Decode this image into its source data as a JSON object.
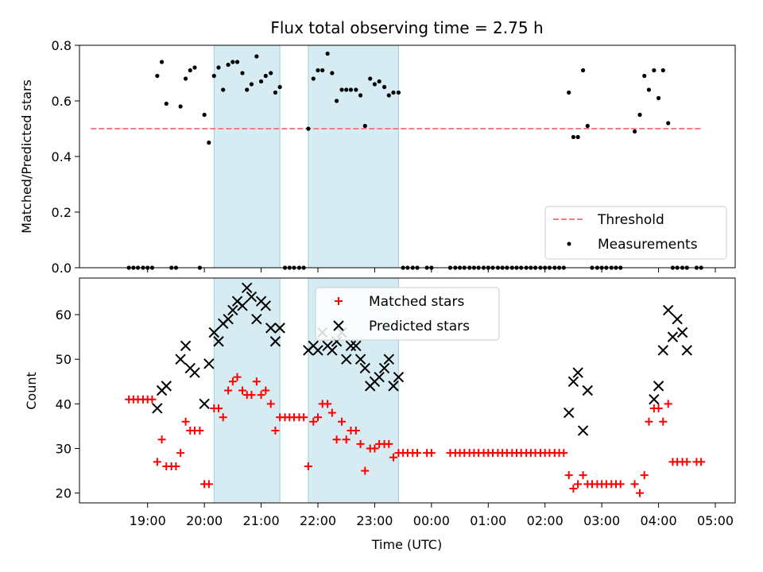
{
  "chart_data": [
    {
      "type": "scatter",
      "title": "Flux total observing time = 2.75 h",
      "xlabel": "",
      "ylabel": "Matched/Predicted stars",
      "ylim": [
        0,
        0.8
      ],
      "xlim_hours": [
        17.8,
        29.35
      ],
      "yticks": [
        0.0,
        0.2,
        0.4,
        0.6,
        0.8
      ],
      "ytick_labels": [
        "0.0",
        "0.2",
        "0.4",
        "0.6",
        "0.8"
      ],
      "legend_position": "lower-right",
      "legend": {
        "threshold": "Threshold",
        "measurements": "Measurements"
      },
      "threshold": {
        "value": 0.5,
        "x_start": 18.0,
        "x_end": 28.75,
        "color": "#f08080"
      },
      "shaded_spans_hours": [
        [
          20.17,
          21.33
        ],
        [
          21.83,
          23.42
        ]
      ],
      "series": [
        {
          "name": "Measurements",
          "color": "#000000",
          "x": [
            18.67,
            18.75,
            18.83,
            18.92,
            19.0,
            19.08,
            19.17,
            19.25,
            19.33,
            19.42,
            19.5,
            19.58,
            19.67,
            19.75,
            19.83,
            19.92,
            20.0,
            20.08,
            20.17,
            20.25,
            20.33,
            20.42,
            20.5,
            20.58,
            20.67,
            20.75,
            20.83,
            20.92,
            21.0,
            21.08,
            21.17,
            21.25,
            21.33,
            21.42,
            21.5,
            21.58,
            21.67,
            21.75,
            21.83,
            21.92,
            22.0,
            22.08,
            22.17,
            22.25,
            22.33,
            22.42,
            22.5,
            22.58,
            22.67,
            22.75,
            22.83,
            22.92,
            23.0,
            23.08,
            23.17,
            23.25,
            23.33,
            23.42,
            23.5,
            23.58,
            23.67,
            23.75,
            23.92,
            24.0,
            24.33,
            24.42,
            24.5,
            24.58,
            24.67,
            24.75,
            24.83,
            24.92,
            25.0,
            25.08,
            25.17,
            25.25,
            25.33,
            25.42,
            25.5,
            25.58,
            25.67,
            25.75,
            25.83,
            25.92,
            26.0,
            26.08,
            26.17,
            26.25,
            26.33,
            26.42,
            26.5,
            26.58,
            26.67,
            26.75,
            26.83,
            26.92,
            27.0,
            27.08,
            27.17,
            27.25,
            27.33,
            27.58,
            27.67,
            27.75,
            27.83,
            27.92,
            28.0,
            28.08,
            28.17,
            28.25,
            28.33,
            28.42,
            28.5,
            28.67,
            28.75
          ],
          "y": [
            0.0,
            0.0,
            0.0,
            0.0,
            0.0,
            0.0,
            0.69,
            0.74,
            0.59,
            0.0,
            0.0,
            0.58,
            0.68,
            0.71,
            0.72,
            0.0,
            0.55,
            0.45,
            0.69,
            0.72,
            0.64,
            0.73,
            0.74,
            0.74,
            0.7,
            0.64,
            0.66,
            0.76,
            0.67,
            0.69,
            0.7,
            0.63,
            0.65,
            0.0,
            0.0,
            0.0,
            0.0,
            0.0,
            0.5,
            0.68,
            0.71,
            0.71,
            0.77,
            0.7,
            0.6,
            0.64,
            0.64,
            0.64,
            0.64,
            0.62,
            0.51,
            0.68,
            0.66,
            0.67,
            0.65,
            0.62,
            0.63,
            0.63,
            0.0,
            0.0,
            0.0,
            0.0,
            0.0,
            0.0,
            0.0,
            0.0,
            0.0,
            0.0,
            0.0,
            0.0,
            0.0,
            0.0,
            0.0,
            0.0,
            0.0,
            0.0,
            0.0,
            0.0,
            0.0,
            0.0,
            0.0,
            0.0,
            0.0,
            0.0,
            0.0,
            0.0,
            0.0,
            0.0,
            0.0,
            0.63,
            0.47,
            0.47,
            0.71,
            0.51,
            0.0,
            0.0,
            0.0,
            0.0,
            0.0,
            0.0,
            0.0,
            0.49,
            0.55,
            0.69,
            0.64,
            0.71,
            0.61,
            0.71,
            0.52,
            0.0,
            0.0,
            0.0,
            0.0,
            0.0,
            0.0
          ]
        }
      ]
    },
    {
      "type": "scatter",
      "title": "",
      "xlabel": "Time (UTC)",
      "ylabel": "Count",
      "ylim": [
        17.8,
        68.2
      ],
      "xlim_hours": [
        17.8,
        29.35
      ],
      "yticks": [
        20,
        30,
        40,
        50,
        60
      ],
      "ytick_labels": [
        "20",
        "30",
        "40",
        "50",
        "60"
      ],
      "xticks_hours": [
        19,
        20,
        21,
        22,
        23,
        24,
        25,
        26,
        27,
        28,
        29
      ],
      "xtick_labels": [
        "19:00",
        "20:00",
        "21:00",
        "22:00",
        "23:00",
        "00:00",
        "01:00",
        "02:00",
        "03:00",
        "04:00",
        "05:00"
      ],
      "legend_position": "upper-center",
      "legend": {
        "matched": "Matched stars",
        "predicted": "Predicted stars"
      },
      "shaded_spans_hours": [
        [
          20.17,
          21.33
        ],
        [
          21.83,
          23.42
        ]
      ],
      "series": [
        {
          "name": "Matched stars",
          "color": "#ff0000",
          "marker": "plus",
          "x": [
            18.67,
            18.75,
            18.83,
            18.92,
            19.0,
            19.08,
            19.17,
            19.25,
            19.33,
            19.42,
            19.5,
            19.58,
            19.67,
            19.75,
            19.83,
            19.92,
            20.0,
            20.08,
            20.17,
            20.25,
            20.33,
            20.42,
            20.5,
            20.58,
            20.67,
            20.75,
            20.83,
            20.92,
            21.0,
            21.08,
            21.17,
            21.25,
            21.33,
            21.42,
            21.5,
            21.58,
            21.67,
            21.75,
            21.83,
            21.92,
            22.0,
            22.08,
            22.17,
            22.25,
            22.33,
            22.42,
            22.5,
            22.58,
            22.67,
            22.75,
            22.83,
            22.92,
            23.0,
            23.08,
            23.17,
            23.25,
            23.33,
            23.42,
            23.5,
            23.58,
            23.67,
            23.75,
            23.92,
            24.0,
            24.33,
            24.42,
            24.5,
            24.58,
            24.67,
            24.75,
            24.83,
            24.92,
            25.0,
            25.08,
            25.17,
            25.25,
            25.33,
            25.42,
            25.5,
            25.58,
            25.67,
            25.75,
            25.83,
            25.92,
            26.0,
            26.08,
            26.17,
            26.25,
            26.33,
            26.42,
            26.5,
            26.58,
            26.67,
            26.75,
            26.83,
            26.92,
            27.0,
            27.08,
            27.17,
            27.25,
            27.33,
            27.58,
            27.67,
            27.75,
            27.83,
            27.92,
            28.0,
            28.08,
            28.17,
            28.25,
            28.33,
            28.42,
            28.5,
            28.67,
            28.75
          ],
          "y": [
            41,
            41,
            41,
            41,
            41,
            41,
            27,
            32,
            26,
            26,
            26,
            29,
            36,
            34,
            34,
            34,
            22,
            22,
            39,
            39,
            37,
            43,
            45,
            46,
            43,
            42,
            42,
            45,
            42,
            43,
            40,
            34,
            37,
            37,
            37,
            37,
            37,
            37,
            26,
            36,
            37,
            40,
            40,
            38,
            32,
            36,
            32,
            34,
            34,
            31,
            25,
            30,
            30,
            31,
            31,
            31,
            28,
            29,
            29,
            29,
            29,
            29,
            29,
            29,
            29,
            29,
            29,
            29,
            29,
            29,
            29,
            29,
            29,
            29,
            29,
            29,
            29,
            29,
            29,
            29,
            29,
            29,
            29,
            29,
            29,
            29,
            29,
            29,
            29,
            24,
            21,
            22,
            24,
            22,
            22,
            22,
            22,
            22,
            22,
            22,
            22,
            22,
            20,
            24,
            36,
            39,
            39,
            36,
            40,
            27,
            27,
            27,
            27,
            27,
            27
          ]
        },
        {
          "name": "Predicted stars",
          "color": "#000000",
          "marker": "x",
          "x": [
            19.17,
            19.25,
            19.33,
            19.58,
            19.67,
            19.75,
            19.83,
            20.0,
            20.08,
            20.17,
            20.25,
            20.33,
            20.42,
            20.5,
            20.58,
            20.67,
            20.75,
            20.83,
            20.92,
            21.0,
            21.08,
            21.17,
            21.25,
            21.33,
            21.83,
            21.92,
            22.0,
            22.08,
            22.17,
            22.25,
            22.33,
            22.42,
            22.5,
            22.58,
            22.67,
            22.75,
            22.83,
            22.92,
            23.0,
            23.08,
            23.17,
            23.25,
            23.33,
            23.42,
            26.42,
            26.5,
            26.58,
            26.67,
            26.75,
            27.92,
            28.0,
            28.08,
            28.17,
            28.25,
            28.33,
            28.42,
            28.5
          ],
          "y": [
            39,
            43,
            44,
            50,
            53,
            48,
            47,
            40,
            49,
            56,
            54,
            58,
            59,
            61,
            63,
            62,
            66,
            64,
            59,
            63,
            62,
            57,
            54,
            57,
            52,
            53,
            52,
            56,
            53,
            52,
            54,
            56,
            50,
            53,
            53,
            50,
            48,
            44,
            45,
            46,
            48,
            50,
            44,
            46,
            38,
            45,
            47,
            34,
            43,
            41,
            44,
            52,
            61,
            55,
            59,
            56,
            52
          ]
        }
      ]
    }
  ]
}
